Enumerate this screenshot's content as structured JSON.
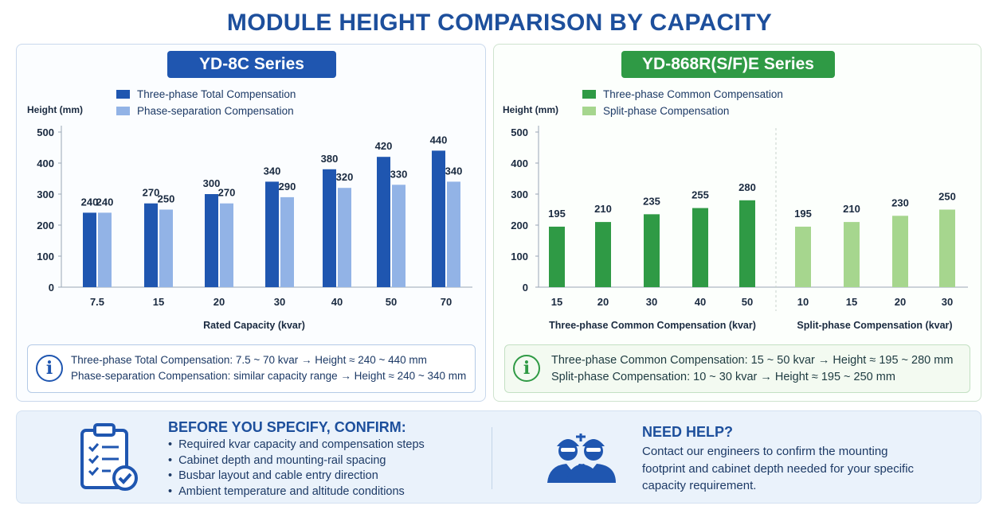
{
  "title": "MODULE HEIGHT COMPARISON BY CAPACITY",
  "colors": {
    "blue_dark": "#1f56b0",
    "blue_light": "#92b3e6",
    "green_dark": "#2f9a45",
    "green_light": "#a6d68e"
  },
  "chart_data": [
    {
      "type": "bar",
      "title": "YD-8C Series",
      "xlabel": "Rated Capacity (kvar)",
      "ylabel": "Height (mm)",
      "ylim": [
        0,
        500
      ],
      "yticks": [
        0,
        100,
        200,
        300,
        400,
        500
      ],
      "legend_position": "top-left",
      "categories": [
        "7.5",
        "15",
        "20",
        "30",
        "40",
        "50",
        "70"
      ],
      "series": [
        {
          "name": "Three-phase Total Compensation",
          "values": [
            240,
            270,
            300,
            340,
            380,
            420,
            440
          ]
        },
        {
          "name": "Phase-separation Compensation",
          "values": [
            240,
            250,
            270,
            290,
            320,
            330,
            340
          ]
        }
      ]
    },
    {
      "type": "bar",
      "title": "YD-868R(S/F)E Series",
      "ylabel": "Height (mm)",
      "ylim": [
        0,
        500
      ],
      "yticks": [
        0,
        100,
        200,
        300,
        400,
        500
      ],
      "legend_position": "top-left",
      "groups": [
        {
          "xlabel": "Three-phase Common Compensation (kvar)",
          "series": "Three-phase Common Compensation",
          "categories": [
            "15",
            "20",
            "30",
            "40",
            "50"
          ],
          "values": [
            195,
            210,
            235,
            255,
            280
          ]
        },
        {
          "xlabel": "Split-phase Compensation (kvar)",
          "series": "Split-phase Compensation",
          "categories": [
            "10",
            "15",
            "20",
            "30"
          ],
          "values": [
            195,
            210,
            230,
            250
          ]
        }
      ],
      "series": [
        {
          "name": "Three-phase Common Compensation"
        },
        {
          "name": "Split-phase Compensation"
        }
      ]
    }
  ],
  "left_info": {
    "icon": "info-icon",
    "line1": "Three-phase Total Compensation: 7.5 ~ 70 kvar → Height ≈ 240 ~ 440 mm",
    "line2": "Phase-separation Compensation: similar capacity range → Height ≈ 240 ~ 340 mm"
  },
  "right_info": {
    "icon": "info-icon",
    "line1": "Three-phase Common Compensation: 15 ~ 50 kvar → Height ≈ 195 ~ 280 mm",
    "line2": "Split-phase Compensation: 10 ~ 30 kvar → Height ≈ 195 ~ 250 mm"
  },
  "confirm": {
    "icon": "clipboard-checklist-icon",
    "title": "BEFORE YOU SPECIFY, CONFIRM:",
    "items": [
      "Required kvar capacity and compensation steps",
      "Cabinet depth and mounting-rail spacing",
      "Busbar layout and cable entry direction",
      "Ambient temperature and altitude conditions"
    ]
  },
  "help": {
    "icon": "engineers-icon",
    "title": "NEED HELP?",
    "text": "Contact our engineers to confirm the mounting footprint and cabinet depth needed for your specific capacity requirement."
  }
}
